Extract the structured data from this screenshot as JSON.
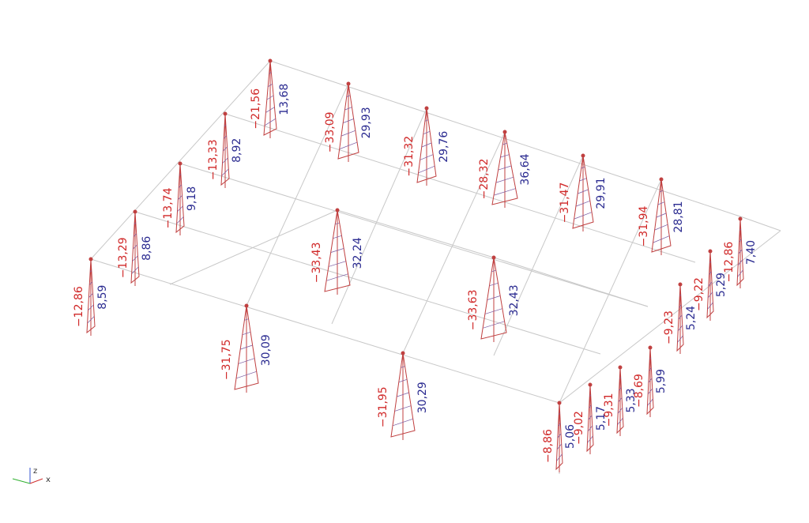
{
  "columns": [
    {
      "min": "−12,86",
      "max": "8,59"
    },
    {
      "min": "−13,29",
      "max": "8,86"
    },
    {
      "min": "−13,74",
      "max": "9,18"
    },
    {
      "min": "−13,33",
      "max": "8,92"
    },
    {
      "min": "−21,56",
      "max": "13,68"
    },
    {
      "min": "−33,09",
      "max": "29,93"
    },
    {
      "min": "−31,32",
      "max": "29,76"
    },
    {
      "min": "−28,32",
      "max": "36,64"
    },
    {
      "min": "−31,47",
      "max": "29,91"
    },
    {
      "min": "−31,94",
      "max": "28,81"
    },
    {
      "min": "−33,43",
      "max": "32,24"
    },
    {
      "min": "−33,63",
      "max": "32,43"
    },
    {
      "min": "−31,75",
      "max": "30,09"
    },
    {
      "min": "−31,95",
      "max": "30,29"
    },
    {
      "min": "−8,86",
      "max": "5,06"
    },
    {
      "min": "−9,02",
      "max": "5,17"
    },
    {
      "min": "−9,31",
      "max": "5,33"
    },
    {
      "min": "−8,69",
      "max": "5,99"
    },
    {
      "min": "−9,23",
      "max": "5,24"
    },
    {
      "min": "−9,22",
      "max": "5,29"
    },
    {
      "min": "−12,86",
      "max": "7,40"
    }
  ],
  "axes": {
    "x": "x",
    "z": "z"
  }
}
